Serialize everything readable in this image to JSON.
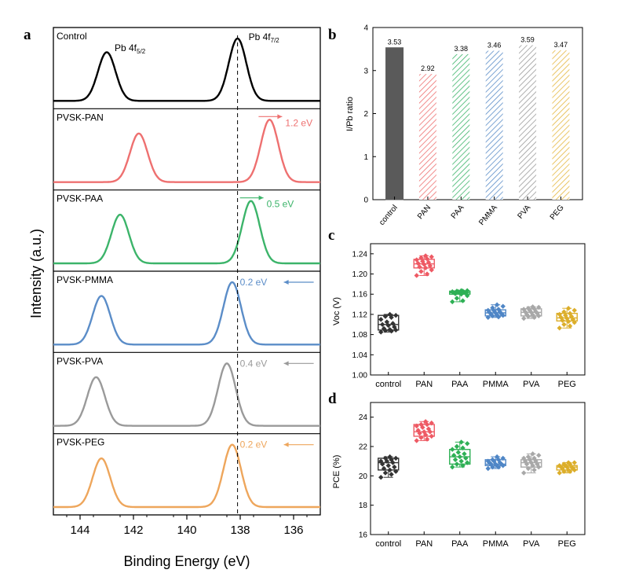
{
  "panel_labels": {
    "a": "a",
    "b": "b",
    "c": "c",
    "d": "d"
  },
  "colors": {
    "Control": "#000000",
    "PVSK-PAN": "#ee7070",
    "PVSK-PAA": "#3cb46a",
    "PVSK-PMMA": "#5b8dc8",
    "PVSK-PVA": "#9a9a9a",
    "PVSK-PEG": "#eea65c"
  },
  "chart_data": [
    {
      "id": "a",
      "type": "line",
      "xlabel": "Binding Energy (eV)",
      "ylabel": "Intensity (a.u.)",
      "xlim": [
        145,
        135
      ],
      "xreversed": true,
      "x_ticks": [
        "144",
        "142",
        "140",
        "138",
        "136"
      ],
      "x_tick_values": [
        144,
        142,
        140,
        138,
        136
      ],
      "reference_line_x": 138.1,
      "peak_labels": {
        "pb52": "Pb 4f",
        "pb52_sub": "5/2",
        "pb72": "Pb 4f",
        "pb72_sub": "7/2"
      },
      "series": [
        {
          "name": "Control",
          "peak_5_2": 143.0,
          "peak_7_2": 138.1,
          "shift_label": "",
          "shift_dir": ""
        },
        {
          "name": "PVSK-PAN",
          "peak_5_2": 141.8,
          "peak_7_2": 136.9,
          "shift_label": "1.2 eV",
          "shift_dir": "right"
        },
        {
          "name": "PVSK-PAA",
          "peak_5_2": 142.5,
          "peak_7_2": 137.6,
          "shift_label": "0.5 eV",
          "shift_dir": "right"
        },
        {
          "name": "PVSK-PMMA",
          "peak_5_2": 143.2,
          "peak_7_2": 138.3,
          "shift_label": "0.2 eV",
          "shift_dir": "left"
        },
        {
          "name": "PVSK-PVA",
          "peak_5_2": 143.4,
          "peak_7_2": 138.5,
          "shift_label": "0.4 eV",
          "shift_dir": "left"
        },
        {
          "name": "PVSK-PEG",
          "peak_5_2": 143.2,
          "peak_7_2": 138.3,
          "shift_label": "0.2 eV",
          "shift_dir": "left"
        }
      ]
    },
    {
      "id": "b",
      "type": "bar",
      "ylabel": "I/Pb ratio",
      "ylim": [
        0,
        4
      ],
      "y_ticks": [
        "0",
        "1",
        "2",
        "3",
        "4"
      ],
      "y_tick_values": [
        0,
        1,
        2,
        3,
        4
      ],
      "categories": [
        "control",
        "PAN",
        "PAA",
        "PMMA",
        "PVA",
        "PEG"
      ],
      "values": [
        3.53,
        2.92,
        3.38,
        3.46,
        3.59,
        3.47
      ],
      "value_labels": [
        "3.53",
        "2.92",
        "3.38",
        "3.46",
        "3.59",
        "3.47"
      ],
      "bar_colors": [
        "#5a5a5a",
        "#ee7070",
        "#3cb46a",
        "#5b8dc8",
        "#9a9a9a",
        "#e5b840"
      ]
    },
    {
      "id": "c",
      "type": "box",
      "ylabel": "Voc (V)",
      "ylim": [
        1.0,
        1.26
      ],
      "y_ticks": [
        "1.00",
        "1.04",
        "1.08",
        "1.12",
        "1.16",
        "1.20",
        "1.24"
      ],
      "y_tick_values": [
        1.0,
        1.04,
        1.08,
        1.12,
        1.16,
        1.2,
        1.24
      ],
      "categories": [
        "control",
        "PAN",
        "PAA",
        "PMMA",
        "PVA",
        "PEG"
      ],
      "colors": [
        "#333333",
        "#ee5a64",
        "#2eb055",
        "#4f86c6",
        "#a8a8a8",
        "#dcae2a"
      ],
      "boxes": [
        {
          "q1": 1.089,
          "median": 1.1,
          "q3": 1.118,
          "min": 1.085,
          "max": 1.12,
          "points": [
            1.085,
            1.087,
            1.088,
            1.089,
            1.09,
            1.092,
            1.095,
            1.098,
            1.1,
            1.102,
            1.105,
            1.11,
            1.114,
            1.116,
            1.118,
            1.12
          ]
        },
        {
          "q1": 1.212,
          "median": 1.22,
          "q3": 1.229,
          "min": 1.197,
          "max": 1.236,
          "points": [
            1.197,
            1.2,
            1.205,
            1.208,
            1.212,
            1.214,
            1.216,
            1.219,
            1.221,
            1.223,
            1.225,
            1.228,
            1.23,
            1.232,
            1.234,
            1.236
          ]
        },
        {
          "q1": 1.16,
          "median": 1.163,
          "q3": 1.166,
          "min": 1.145,
          "max": 1.167,
          "points": [
            1.145,
            1.147,
            1.152,
            1.157,
            1.16,
            1.161,
            1.162,
            1.163,
            1.163,
            1.164,
            1.165,
            1.165,
            1.166,
            1.166,
            1.167,
            1.167
          ]
        },
        {
          "q1": 1.117,
          "median": 1.123,
          "q3": 1.129,
          "min": 1.114,
          "max": 1.139,
          "points": [
            1.114,
            1.115,
            1.117,
            1.118,
            1.119,
            1.12,
            1.121,
            1.123,
            1.124,
            1.125,
            1.127,
            1.128,
            1.13,
            1.133,
            1.136,
            1.139
          ]
        },
        {
          "q1": 1.117,
          "median": 1.124,
          "q3": 1.131,
          "min": 1.112,
          "max": 1.135,
          "points": [
            1.112,
            1.114,
            1.116,
            1.117,
            1.119,
            1.12,
            1.122,
            1.124,
            1.125,
            1.126,
            1.128,
            1.13,
            1.131,
            1.132,
            1.134,
            1.135
          ]
        },
        {
          "q1": 1.107,
          "median": 1.113,
          "q3": 1.122,
          "min": 1.093,
          "max": 1.132,
          "points": [
            1.093,
            1.097,
            1.1,
            1.104,
            1.106,
            1.108,
            1.11,
            1.112,
            1.114,
            1.116,
            1.118,
            1.12,
            1.122,
            1.125,
            1.128,
            1.132
          ]
        }
      ]
    },
    {
      "id": "d",
      "type": "box",
      "ylabel": "PCE (%)",
      "ylim": [
        16,
        25
      ],
      "y_ticks": [
        "16",
        "18",
        "20",
        "22",
        "24"
      ],
      "y_tick_values": [
        16,
        18,
        20,
        22,
        24
      ],
      "categories": [
        "control",
        "PAN",
        "PAA",
        "PMMA",
        "PVA",
        "PEG"
      ],
      "colors": [
        "#333333",
        "#ee5a64",
        "#2eb055",
        "#4f86c6",
        "#a8a8a8",
        "#dcae2a"
      ],
      "boxes": [
        {
          "q1": 20.4,
          "median": 20.9,
          "q3": 21.2,
          "min": 19.9,
          "max": 21.3,
          "points": [
            19.9,
            20.1,
            20.2,
            20.3,
            20.4,
            20.5,
            20.6,
            20.7,
            20.8,
            20.9,
            21.0,
            21.0,
            21.1,
            21.2,
            21.2,
            21.3
          ]
        },
        {
          "q1": 22.7,
          "median": 23.0,
          "q3": 23.5,
          "min": 22.4,
          "max": 23.7,
          "points": [
            22.4,
            22.5,
            22.6,
            22.7,
            22.8,
            22.9,
            23.0,
            23.0,
            23.1,
            23.2,
            23.3,
            23.4,
            23.5,
            23.5,
            23.6,
            23.7
          ]
        },
        {
          "q1": 20.8,
          "median": 21.3,
          "q3": 21.8,
          "min": 20.6,
          "max": 22.3,
          "points": [
            20.6,
            20.7,
            20.8,
            20.9,
            21.0,
            21.1,
            21.2,
            21.3,
            21.4,
            21.5,
            21.6,
            21.8,
            21.9,
            22.0,
            22.2,
            22.3
          ]
        },
        {
          "q1": 20.7,
          "median": 20.8,
          "q3": 21.1,
          "min": 20.5,
          "max": 21.3,
          "points": [
            20.5,
            20.6,
            20.6,
            20.7,
            20.7,
            20.8,
            20.8,
            20.8,
            20.9,
            20.9,
            21.0,
            21.0,
            21.1,
            21.1,
            21.2,
            21.3
          ]
        },
        {
          "q1": 20.6,
          "median": 20.9,
          "q3": 21.1,
          "min": 20.2,
          "max": 21.5,
          "points": [
            20.2,
            20.4,
            20.5,
            20.6,
            20.7,
            20.8,
            20.8,
            20.9,
            21.0,
            21.0,
            21.1,
            21.2,
            21.2,
            21.3,
            21.4,
            21.5
          ]
        },
        {
          "q1": 20.4,
          "median": 20.6,
          "q3": 20.7,
          "min": 20.2,
          "max": 20.9,
          "points": [
            20.2,
            20.3,
            20.3,
            20.4,
            20.4,
            20.5,
            20.5,
            20.6,
            20.6,
            20.6,
            20.7,
            20.7,
            20.8,
            20.8,
            20.9,
            20.9
          ]
        }
      ]
    }
  ]
}
